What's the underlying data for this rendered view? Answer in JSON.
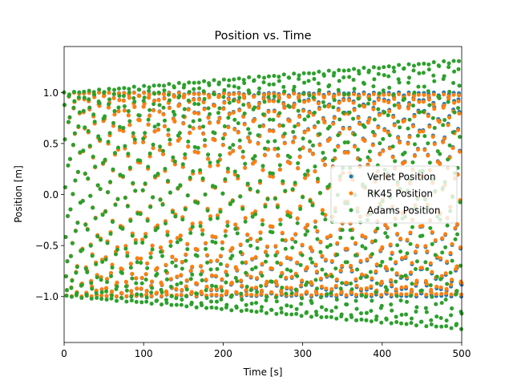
{
  "chart_data": {
    "type": "scatter",
    "title": "Position vs. Time",
    "xlabel": "Time [s]",
    "ylabel": "Position [m]",
    "xlim": [
      0,
      500
    ],
    "ylim": [
      -1.45,
      1.45
    ],
    "x_ticks": [
      0,
      100,
      200,
      300,
      400,
      500
    ],
    "y_ticks": [
      -1.0,
      -0.5,
      0.0,
      0.5,
      1.0
    ],
    "x_tick_labels": [
      "0",
      "100",
      "200",
      "300",
      "400",
      "500"
    ],
    "y_tick_labels": [
      "−1.0",
      "−0.5",
      "0.0",
      "0.5",
      "1.0"
    ],
    "grid": false,
    "legend_position": "center-right",
    "series": [
      {
        "name": "Verlet Position",
        "color": "#1f77b4",
        "t_start": 0,
        "t_end": 500,
        "t_step": 0.5,
        "amplitude_start": 1.0,
        "amplitude_end": 1.0,
        "omega": 1.0
      },
      {
        "name": "RK45 Position",
        "color": "#ff7f0e",
        "t_start": 0,
        "t_end": 500,
        "t_step": 0.5,
        "amplitude_start": 1.0,
        "amplitude_end": 0.98,
        "omega": 1.0
      },
      {
        "name": "Adams Position",
        "color": "#2ca02c",
        "t_start": 0,
        "t_end": 500,
        "t_step": 0.5,
        "amplitude_start": 1.0,
        "amplitude_end": 1.32,
        "omega": 1.0
      }
    ]
  }
}
